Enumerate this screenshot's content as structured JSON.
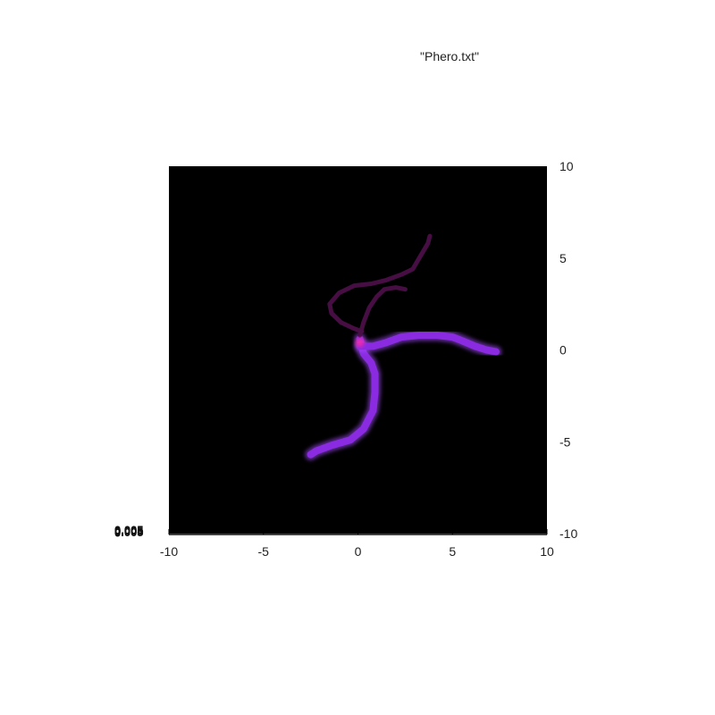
{
  "chart_data": {
    "type": "heatmap",
    "title": "\"Phero.txt\"",
    "xlabel": "",
    "ylabel": "",
    "xlim": [
      -10,
      10
    ],
    "ylim": [
      -10,
      10
    ],
    "x_ticks": [
      "-10",
      "-5",
      "0",
      "5",
      "10"
    ],
    "y_ticks": [
      "10",
      "5",
      "0",
      "-5",
      "-10"
    ],
    "z_labels": [
      "0",
      "0.005"
    ],
    "grid": false,
    "background_color": "#000000",
    "trail_colors": {
      "strong": "#8a2be2",
      "glow": "#a64dff",
      "weak": "#4a0f46",
      "hotspot": "#ff2aa0"
    },
    "trails": [
      {
        "intensity": "strong",
        "points": [
          [
            0.1,
            0.6
          ],
          [
            0.3,
            -0.2
          ],
          [
            0.7,
            -0.7
          ],
          [
            0.9,
            -1.3
          ],
          [
            0.9,
            -2.3
          ],
          [
            0.8,
            -3.3
          ],
          [
            0.3,
            -4.3
          ],
          [
            -0.4,
            -4.9
          ],
          [
            -1.4,
            -5.2
          ],
          [
            -2.2,
            -5.5
          ],
          [
            -2.5,
            -5.7
          ]
        ]
      },
      {
        "intensity": "strong",
        "points": [
          [
            0.1,
            0.2
          ],
          [
            0.8,
            0.2
          ],
          [
            1.5,
            0.4
          ],
          [
            2.3,
            0.7
          ],
          [
            3.2,
            0.8
          ],
          [
            4.2,
            0.8
          ],
          [
            5.0,
            0.7
          ],
          [
            5.5,
            0.5
          ],
          [
            6.2,
            0.2
          ],
          [
            6.8,
            0.0
          ],
          [
            7.3,
            -0.1
          ]
        ]
      },
      {
        "intensity": "weak",
        "points": [
          [
            0.1,
            0.8
          ],
          [
            0.3,
            1.5
          ],
          [
            0.6,
            2.3
          ],
          [
            1.0,
            2.9
          ],
          [
            1.4,
            3.3
          ],
          [
            2.0,
            3.4
          ],
          [
            2.5,
            3.3
          ]
        ]
      },
      {
        "intensity": "weak",
        "points": [
          [
            0.2,
            1.0
          ],
          [
            -0.3,
            1.2
          ],
          [
            -0.9,
            1.5
          ],
          [
            -1.4,
            2.0
          ],
          [
            -1.5,
            2.5
          ],
          [
            -1.0,
            3.1
          ],
          [
            -0.2,
            3.5
          ],
          [
            0.7,
            3.6
          ],
          [
            1.5,
            3.8
          ],
          [
            2.3,
            4.1
          ],
          [
            2.9,
            4.4
          ],
          [
            3.3,
            5.1
          ],
          [
            3.7,
            5.8
          ],
          [
            3.8,
            6.2
          ]
        ]
      }
    ]
  }
}
